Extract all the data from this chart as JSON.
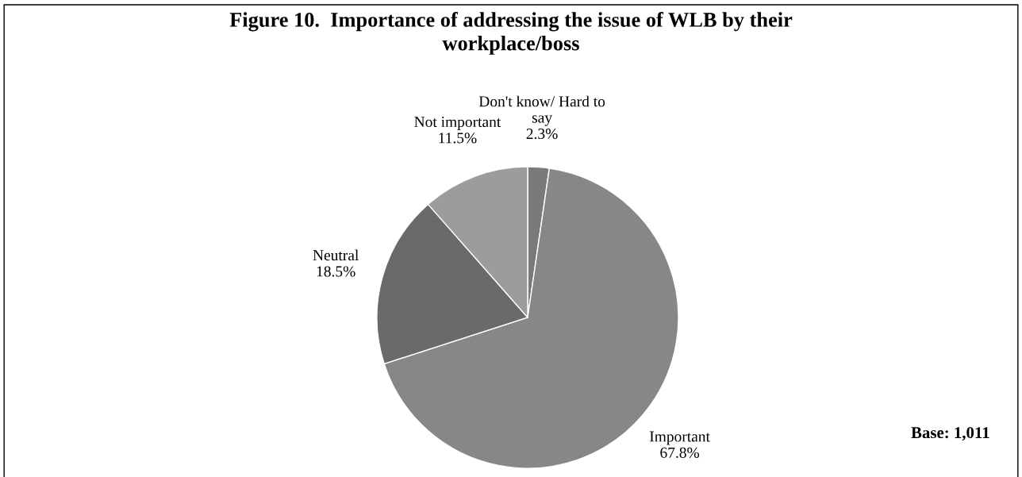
{
  "chart_data": {
    "type": "pie",
    "title": "Figure 10.  Importance of addressing the issue of WLB by their\nworkplace/boss",
    "categories": [
      "Don't know/ Hard to\nsay",
      "Important",
      "Neutral",
      "Not important"
    ],
    "values": [
      2.3,
      67.8,
      18.5,
      11.5
    ],
    "colors": [
      "#7a7a7a",
      "#878787",
      "#6a6a6a",
      "#9c9c9c"
    ],
    "value_labels": [
      "2.3%",
      "67.8%",
      "18.5%",
      "11.5%"
    ],
    "annotations": [
      "Base: 1,011"
    ]
  }
}
